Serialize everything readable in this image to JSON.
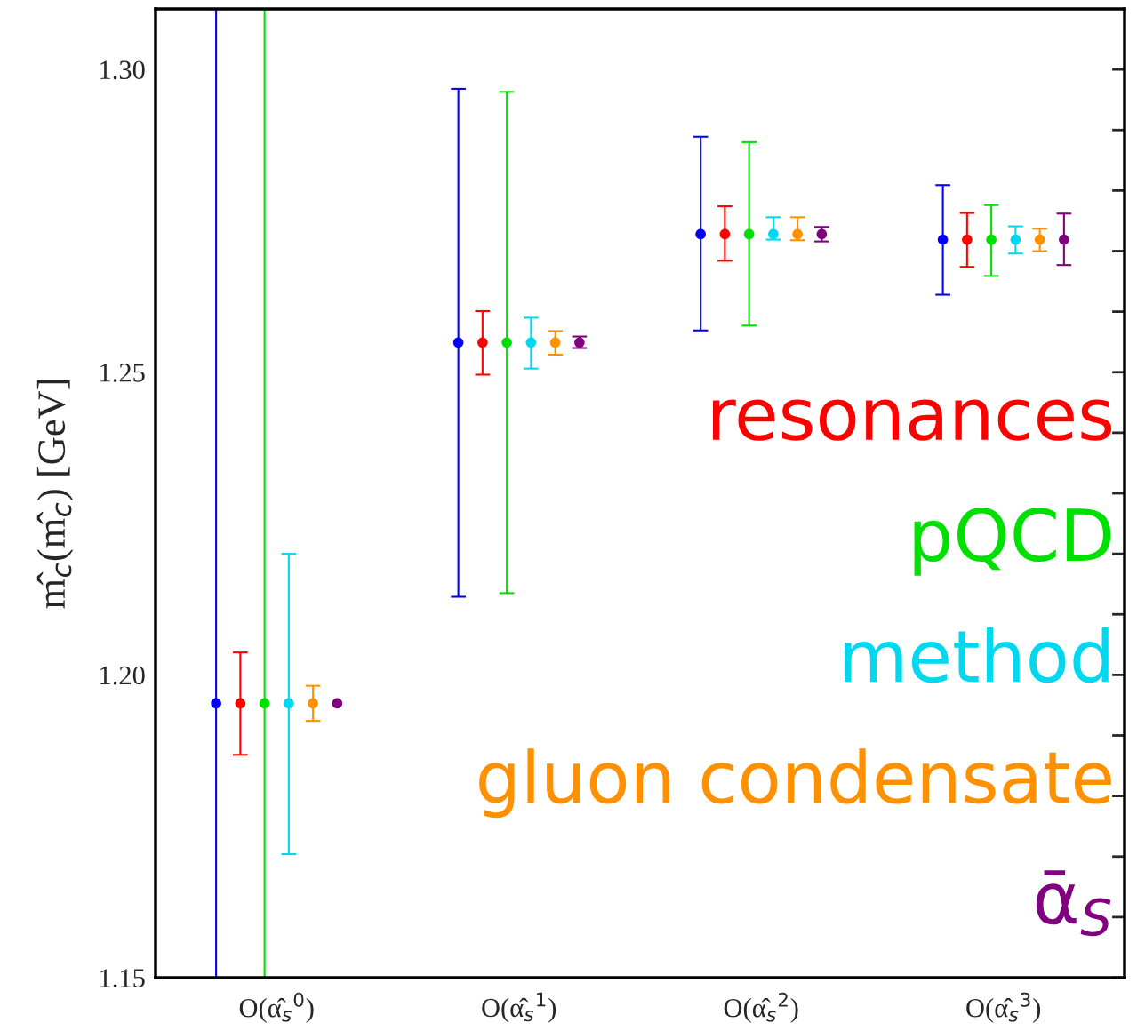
{
  "chart_data": {
    "type": "scatter",
    "ylabel": "m̂$_{c}$(m̂$_{c}$) [GeV]",
    "categories": [
      "O(α̂$_{s}$$^{0}$)",
      "O(α̂$_{s}$$^{1}$)",
      "O(α̂$_{s}$$^{2}$)",
      "O(α̂$_{s}$$^{3}$)"
    ],
    "ylim": [
      1.15,
      1.31
    ],
    "yticks": [
      {
        "value": 1.15,
        "label": "1.15"
      },
      {
        "value": 1.16,
        "label": null
      },
      {
        "value": 1.17,
        "label": null
      },
      {
        "value": 1.18,
        "label": null
      },
      {
        "value": 1.19,
        "label": null
      },
      {
        "value": 1.2,
        "label": "1.20"
      },
      {
        "value": 1.21,
        "label": null
      },
      {
        "value": 1.22,
        "label": null
      },
      {
        "value": 1.23,
        "label": null
      },
      {
        "value": 1.24,
        "label": null
      },
      {
        "value": 1.25,
        "label": "1.25"
      },
      {
        "value": 1.26,
        "label": null
      },
      {
        "value": 1.27,
        "label": null
      },
      {
        "value": 1.28,
        "label": null
      },
      {
        "value": 1.29,
        "label": null
      },
      {
        "value": 1.3,
        "label": "1.30"
      }
    ],
    "grid": false,
    "marker": "circle",
    "legend": "bottom right",
    "series": [
      {
        "color": "#0000ff",
        "values": [
          1.1953,
          1.2549,
          1.2728,
          1.2719
        ],
        "errors": [
          [
            1.15,
            1.31
          ],
          [
            1.2129,
            1.2968
          ],
          [
            1.2569,
            1.2889
          ],
          [
            1.2628,
            1.2809
          ]
        ]
      },
      {
        "name": "resonances",
        "color": "#ff0000",
        "values": [
          1.1953,
          1.2549,
          1.2728,
          1.2719
        ],
        "errors": [
          [
            1.1868,
            1.2037
          ],
          [
            1.2496,
            1.2601
          ],
          [
            1.2684,
            1.2774
          ],
          [
            1.2674,
            1.2763
          ]
        ]
      },
      {
        "name": "pQCD",
        "color": "#00e000",
        "values": [
          1.1953,
          1.2549,
          1.2728,
          1.2719
        ],
        "errors": [
          [
            1.15,
            1.31
          ],
          [
            1.2135,
            1.2963
          ],
          [
            1.2577,
            1.288
          ],
          [
            1.2659,
            1.2776
          ]
        ]
      },
      {
        "name": "method",
        "color": "#00d8f0",
        "values": [
          1.1953,
          1.2549,
          1.2728,
          1.2719
        ],
        "errors": [
          [
            1.1704,
            1.22
          ],
          [
            1.2506,
            1.259
          ],
          [
            1.2719,
            1.2756
          ],
          [
            1.2696,
            1.2741
          ]
        ]
      },
      {
        "name": "gluon condensate",
        "color": "#ff9000",
        "values": [
          1.1953,
          1.2549,
          1.2728,
          1.2719
        ],
        "errors": [
          [
            1.1924,
            1.1982
          ],
          [
            1.2529,
            1.2568
          ],
          [
            1.2718,
            1.2756
          ],
          [
            1.27,
            1.2737
          ]
        ]
      },
      {
        "name": "ᾱ$_{S}$",
        "color": "#800080",
        "values": [
          1.1953,
          1.2549,
          1.2728,
          1.2719
        ],
        "errors": [
          null,
          [
            1.254,
            1.2559
          ],
          [
            1.2716,
            1.274
          ],
          [
            1.2677,
            1.2762
          ]
        ]
      }
    ]
  }
}
